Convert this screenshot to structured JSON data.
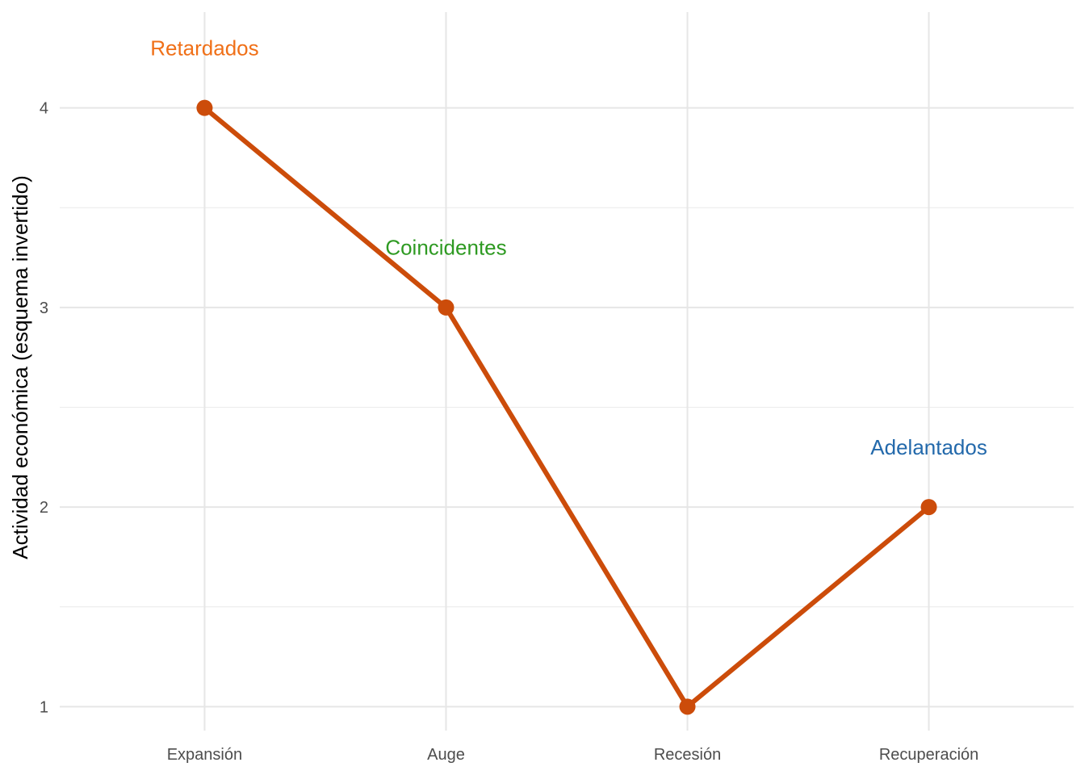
{
  "chart_data": {
    "type": "line",
    "title": "",
    "xlabel": "",
    "ylabel": "Actividad económica (esquema invertido)",
    "categories": [
      "Expansión",
      "Auge",
      "Recesión",
      "Recuperación"
    ],
    "series": [
      {
        "values": [
          4,
          3,
          1,
          2
        ],
        "color": "#cc4c0a"
      }
    ],
    "ylim": [
      0.88,
      4.48
    ],
    "y_ticks": [
      1,
      2,
      3,
      4
    ],
    "grid": true,
    "annotations": [
      {
        "text": "Retardados",
        "category": "Expansión",
        "y": 4.3,
        "color": "#f07018"
      },
      {
        "text": "Coincidentes",
        "category": "Auge",
        "y": 3.3,
        "color": "#2e9a22"
      },
      {
        "text": "Adelantados",
        "category": "Recuperación",
        "y": 2.3,
        "color": "#2369ab"
      }
    ]
  }
}
